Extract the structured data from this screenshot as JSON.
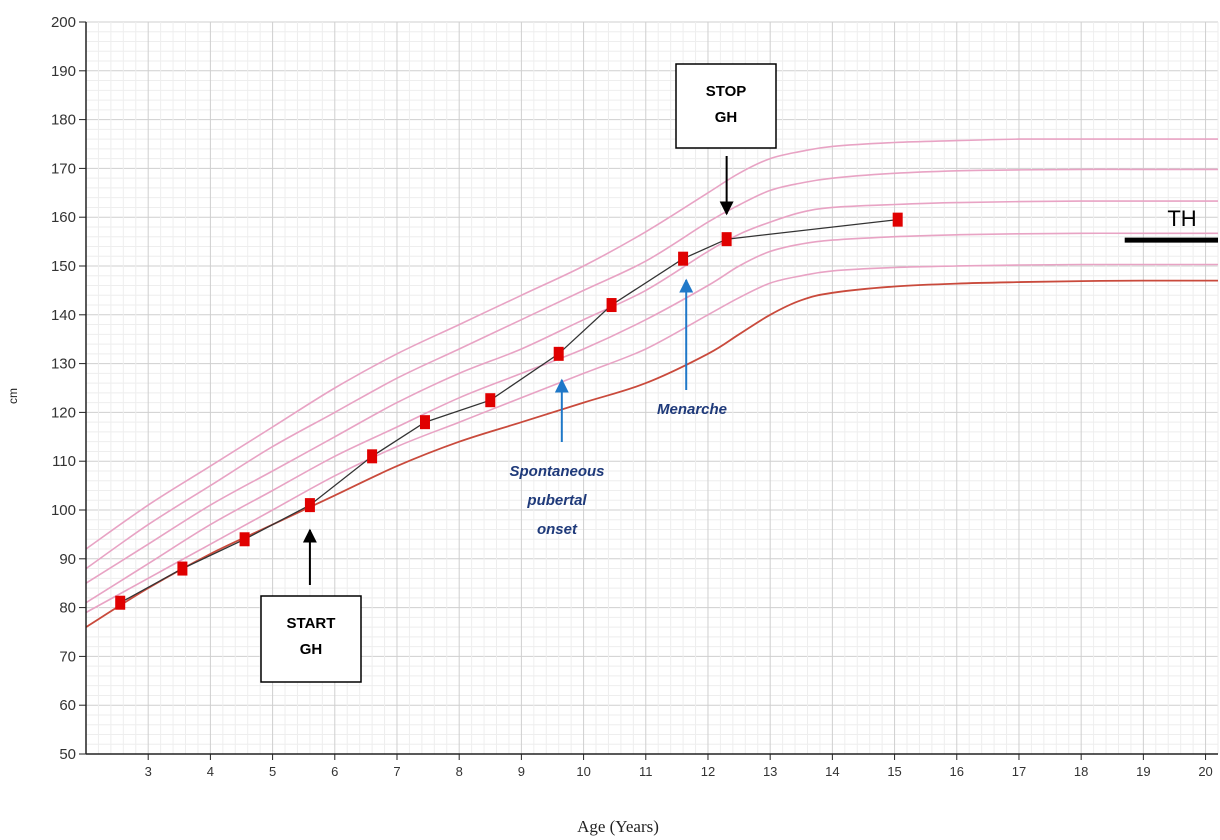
{
  "chart_data": {
    "type": "line",
    "xlabel": "Age (Years)",
    "ylabel": "cm",
    "xlim": [
      2.0,
      20.2
    ],
    "ylim": [
      50,
      200
    ],
    "xticks": [
      3,
      4,
      5,
      6,
      7,
      8,
      9,
      10,
      11,
      12,
      13,
      14,
      15,
      16,
      17,
      18,
      19,
      20
    ],
    "yticks": [
      50,
      60,
      70,
      80,
      90,
      100,
      110,
      120,
      130,
      140,
      150,
      160,
      170,
      180,
      190,
      200
    ],
    "grid": true,
    "colors": {
      "centile": "#e8a3c4",
      "lowest_centile": "#c94a3c",
      "measurement": "#e00000",
      "patient_line": "#333333",
      "annotation": "#1f78c8"
    },
    "centiles": [
      {
        "x": [
          2.0,
          3.0,
          4.0,
          5.0,
          6.0,
          7.0,
          8.0,
          9.0,
          10.0,
          11.0,
          12.0,
          12.5,
          13.0,
          13.5,
          14.0,
          15.0,
          16.0,
          17.0,
          18.0,
          19.0,
          20.2
        ],
        "y": [
          92,
          101,
          109,
          117,
          125,
          132,
          138,
          144,
          150,
          157,
          165,
          169,
          172,
          173.5,
          174.5,
          175.3,
          175.7,
          176,
          176,
          176,
          176
        ]
      },
      {
        "x": [
          2.0,
          3.0,
          4.0,
          5.0,
          6.0,
          7.0,
          8.0,
          9.0,
          10.0,
          11.0,
          12.0,
          12.5,
          13.0,
          13.5,
          14.0,
          15.0,
          16.0,
          17.0,
          18.0,
          19.0,
          20.2
        ],
        "y": [
          88,
          97,
          105,
          113,
          120,
          127,
          133,
          139,
          145,
          151,
          159,
          162.5,
          165.5,
          167,
          168,
          169,
          169.5,
          169.7,
          169.8,
          169.8,
          169.8
        ]
      },
      {
        "x": [
          2.0,
          3.0,
          4.0,
          5.0,
          6.0,
          7.0,
          8.0,
          9.0,
          10.0,
          11.0,
          12.0,
          12.5,
          13.0,
          13.5,
          14.0,
          15.0,
          16.0,
          17.0,
          18.0,
          19.0,
          20.2
        ],
        "y": [
          85,
          93,
          101,
          108,
          115,
          122,
          128,
          133,
          139,
          145,
          153,
          156.5,
          159,
          161,
          162,
          162.6,
          163,
          163.2,
          163.3,
          163.3,
          163.3
        ]
      },
      {
        "x": [
          2.0,
          3.0,
          4.0,
          5.0,
          6.0,
          7.0,
          8.0,
          9.0,
          10.0,
          11.0,
          12.0,
          12.5,
          13.0,
          13.5,
          14.0,
          15.0,
          16.0,
          17.0,
          18.0,
          19.0,
          20.2
        ],
        "y": [
          81,
          89,
          97,
          104,
          111,
          117,
          123,
          128,
          133,
          139,
          146,
          150,
          153,
          154.5,
          155.3,
          156,
          156.4,
          156.6,
          156.7,
          156.7,
          156.7
        ]
      },
      {
        "x": [
          2.0,
          3.0,
          4.0,
          5.0,
          6.0,
          7.0,
          8.0,
          9.0,
          10.0,
          11.0,
          12.0,
          12.5,
          13.0,
          13.5,
          14.0,
          15.0,
          16.0,
          17.0,
          18.0,
          19.0,
          20.2
        ],
        "y": [
          79,
          86,
          93,
          100,
          107,
          113,
          118,
          123,
          128,
          133,
          140,
          143.5,
          146.5,
          148,
          149,
          149.7,
          150,
          150.2,
          150.3,
          150.3,
          150.3
        ]
      },
      {
        "x": [
          2.0,
          3.0,
          4.0,
          5.0,
          6.0,
          7.0,
          8.0,
          9.0,
          10.0,
          11.0,
          12.0,
          12.5,
          13.0,
          13.5,
          14.0,
          15.0,
          16.0,
          17.0,
          18.0,
          19.0,
          20.2
        ],
        "y": [
          76,
          84,
          91,
          97,
          103,
          109,
          114,
          118,
          122,
          126,
          132,
          136,
          140,
          143,
          144.5,
          145.8,
          146.4,
          146.7,
          146.9,
          147,
          147
        ]
      }
    ],
    "measurements": {
      "x": [
        2.55,
        3.55,
        4.55,
        5.6,
        6.6,
        7.45,
        8.5,
        9.6,
        10.45,
        11.6,
        12.3,
        15.05
      ],
      "y": [
        81,
        88,
        94,
        101,
        111,
        118,
        122.5,
        132,
        142,
        151.5,
        155.5,
        159.5
      ]
    },
    "target_height": {
      "label": "TH",
      "y": 155.3,
      "x_range": [
        18.7,
        20.2
      ]
    },
    "annotations": {
      "start_gh": {
        "line1": "START",
        "line2": "GH",
        "x": 5.6
      },
      "stop_gh": {
        "line1": "STOP",
        "line2": "GH",
        "x": 12.3
      },
      "pubertal_onset": {
        "line1": "Spontaneous",
        "line2": "pubertal",
        "line3": "onset",
        "x": 9.65
      },
      "menarche": {
        "label": "Menarche",
        "x": 11.65
      }
    }
  }
}
